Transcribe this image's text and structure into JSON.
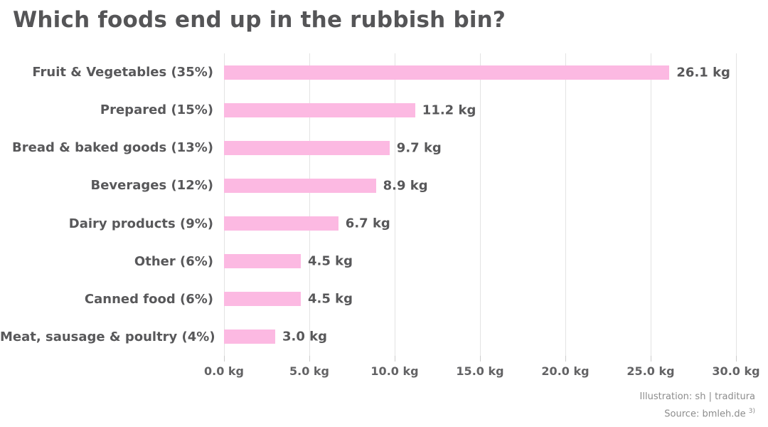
{
  "chart_data": {
    "type": "bar",
    "orientation": "horizontal",
    "title": "Which foods end up in the rubbish bin?",
    "categories": [
      "Fruit & Vegetables (35%)",
      "Prepared (15%)",
      "Bread & baked goods (13%)",
      "Beverages (12%)",
      "Dairy products (9%)",
      "Other (6%)",
      "Canned food (6%)",
      "Meat, sausage & poultry (4%)"
    ],
    "values": [
      26.1,
      11.2,
      9.7,
      8.9,
      6.7,
      4.5,
      4.5,
      3.0
    ],
    "value_labels": [
      "26.1 kg",
      "11.2 kg",
      "9.7 kg",
      "8.9 kg",
      "6.7 kg",
      "4.5 kg",
      "4.5 kg",
      "3.0 kg"
    ],
    "x_ticks": [
      "0.0 kg",
      "5.0 kg",
      "10.0 kg",
      "15.0 kg",
      "20.0 kg",
      "25.0 kg",
      "30.0 kg"
    ],
    "x_tick_values": [
      0,
      5,
      10,
      15,
      20,
      25,
      30
    ],
    "xlabel": "",
    "ylabel": "",
    "xlim": [
      0,
      30
    ],
    "grid": true,
    "legend": false,
    "bar_color": "#fcb9e2",
    "label_color": "#58585a",
    "axis_label_color": "#636365",
    "gridline_color": "#e3e3e3"
  },
  "footer": {
    "illustration": "Illustration: sh | traditura",
    "source": "Source: bmleh.de",
    "source_note": "3)"
  }
}
